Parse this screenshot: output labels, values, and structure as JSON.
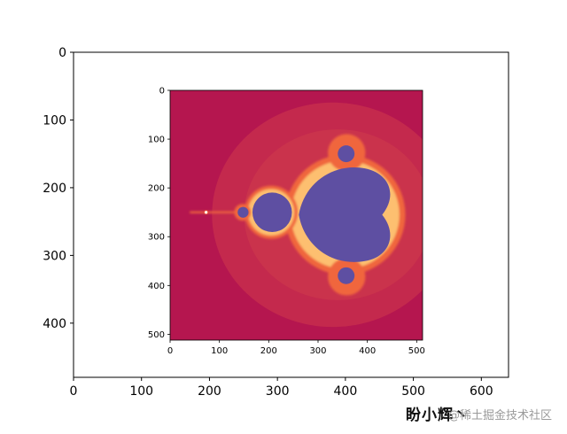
{
  "chart_data": [
    {
      "type": "heatmap",
      "title": "",
      "xlabel": "",
      "ylabel": "",
      "xlim": [
        0,
        640
      ],
      "ylim": [
        480,
        0
      ],
      "x_ticks": [
        0,
        100,
        200,
        300,
        400,
        500,
        600
      ],
      "y_ticks": [
        0,
        100,
        200,
        300,
        400
      ],
      "content": "inner-image"
    },
    {
      "type": "heatmap",
      "title": "",
      "xlabel": "",
      "ylabel": "",
      "xlim": [
        0,
        512
      ],
      "ylim": [
        512,
        0
      ],
      "x_ticks": [
        0,
        100,
        200,
        300,
        400,
        500
      ],
      "y_ticks": [
        0,
        100,
        200,
        300,
        400,
        500
      ],
      "colormap": "Spectral",
      "colors": {
        "background": "#b5164f",
        "halo": "#cf3a4c",
        "edge": "#f0663d",
        "fringe": "#fdbf6f",
        "set": "#5e4fa2"
      }
    }
  ],
  "signature": "盼小辉丶",
  "watermark": "@稀土掘金技术社区"
}
